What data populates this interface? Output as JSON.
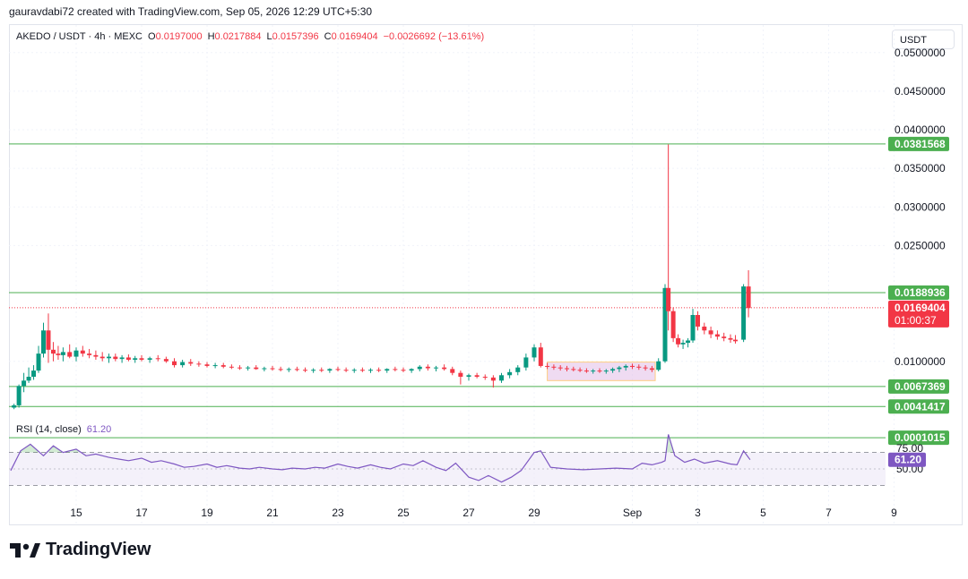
{
  "credit": "gauravdabi72 created with TradingView.com, Sep 05, 2026 12:29 UTC+5:30",
  "legend": {
    "symbol": "AKEDO / USDT · 4h · MEXC",
    "o_label": "O",
    "o": "0.0197000",
    "h_label": "H",
    "h": "0.0217884",
    "l_label": "L",
    "l": "0.0157396",
    "c_label": "C",
    "c": "0.0169404",
    "change": "−0.0026692 (−13.61%)"
  },
  "currency": "USDT",
  "brand": "TradingView",
  "colors": {
    "up": "#089981",
    "down": "#f23645",
    "level": "#4caf50",
    "rsi": "#7e57c2",
    "rsi_band": "#ede7f6",
    "box": "#e1bee7"
  },
  "chart_data": [
    {
      "type": "candlestick",
      "symbol": "AKEDO / USDT",
      "interval": "4h",
      "exchange": "MEXC",
      "ylim": [
        0,
        0.053
      ],
      "y_ticks": [
        "0.0500000",
        "0.0450000",
        "0.0400000",
        "0.0350000",
        "0.0300000",
        "0.0250000",
        "0.0100000"
      ],
      "x_ticks": [
        "15",
        "17",
        "19",
        "21",
        "23",
        "25",
        "27",
        "29",
        "Sep",
        "3",
        "5",
        "7",
        "9"
      ],
      "x_tick_days": [
        15,
        17,
        19,
        21,
        23,
        25,
        27,
        29,
        32,
        34,
        36,
        38,
        40
      ],
      "horizontal_levels": [
        "0.0381568",
        "0.0188936",
        "0.0067369",
        "0.0041417",
        "0.0001015"
      ],
      "last_price": "0.0169404",
      "countdown": "01:00:37",
      "candles": [
        [
          13.1,
          0.004,
          0.0045,
          0.0038,
          0.0043
        ],
        [
          13.25,
          0.0043,
          0.007,
          0.004,
          0.0068
        ],
        [
          13.4,
          0.0068,
          0.0085,
          0.006,
          0.0075
        ],
        [
          13.55,
          0.0075,
          0.0092,
          0.0072,
          0.008
        ],
        [
          13.7,
          0.008,
          0.0095,
          0.0076,
          0.0088
        ],
        [
          13.85,
          0.0088,
          0.012,
          0.0085,
          0.011
        ],
        [
          14.0,
          0.011,
          0.015,
          0.0105,
          0.014
        ],
        [
          14.15,
          0.014,
          0.0162,
          0.0098,
          0.0115
        ],
        [
          14.3,
          0.0115,
          0.0125,
          0.01,
          0.011
        ],
        [
          14.45,
          0.011,
          0.012,
          0.0102,
          0.0108
        ],
        [
          14.6,
          0.0108,
          0.0118,
          0.01,
          0.0112
        ],
        [
          14.8,
          0.0112,
          0.0122,
          0.0104,
          0.0106
        ],
        [
          15.0,
          0.0106,
          0.0118,
          0.01,
          0.0114
        ],
        [
          15.2,
          0.0114,
          0.012,
          0.0106,
          0.011
        ],
        [
          15.4,
          0.011,
          0.0116,
          0.0104,
          0.0108
        ],
        [
          15.6,
          0.0108,
          0.0114,
          0.0102,
          0.0106
        ],
        [
          15.8,
          0.0106,
          0.0112,
          0.01,
          0.0104
        ],
        [
          16.0,
          0.0104,
          0.011,
          0.0098,
          0.0106
        ],
        [
          16.2,
          0.0106,
          0.011,
          0.01,
          0.0103
        ],
        [
          16.4,
          0.0103,
          0.0108,
          0.0098,
          0.0105
        ],
        [
          16.6,
          0.0105,
          0.0109,
          0.01,
          0.0102
        ],
        [
          16.8,
          0.0102,
          0.0107,
          0.0098,
          0.0104
        ],
        [
          17.0,
          0.0104,
          0.0108,
          0.01,
          0.0102
        ],
        [
          17.25,
          0.0102,
          0.0106,
          0.0098,
          0.0104
        ],
        [
          17.5,
          0.0104,
          0.0108,
          0.01,
          0.0103
        ],
        [
          17.75,
          0.0103,
          0.0106,
          0.0098,
          0.01
        ],
        [
          18.0,
          0.01,
          0.0104,
          0.0092,
          0.0095
        ],
        [
          18.25,
          0.0095,
          0.0102,
          0.0092,
          0.0099
        ],
        [
          18.5,
          0.0099,
          0.0103,
          0.0094,
          0.0097
        ],
        [
          18.75,
          0.0097,
          0.01,
          0.0093,
          0.0096
        ],
        [
          19.0,
          0.0096,
          0.0099,
          0.0092,
          0.0094
        ],
        [
          19.25,
          0.0094,
          0.0098,
          0.0091,
          0.0095
        ],
        [
          19.5,
          0.0095,
          0.0098,
          0.0091,
          0.0093
        ],
        [
          19.75,
          0.0093,
          0.0096,
          0.009,
          0.0092
        ],
        [
          20.0,
          0.0092,
          0.0095,
          0.0089,
          0.0091
        ],
        [
          20.25,
          0.0091,
          0.0094,
          0.0088,
          0.0092
        ],
        [
          20.5,
          0.0092,
          0.0095,
          0.0089,
          0.009
        ],
        [
          20.75,
          0.009,
          0.0093,
          0.0087,
          0.0091
        ],
        [
          21.0,
          0.0091,
          0.0094,
          0.0088,
          0.009
        ],
        [
          21.25,
          0.009,
          0.0093,
          0.0087,
          0.0089
        ],
        [
          21.5,
          0.0089,
          0.0092,
          0.0086,
          0.009
        ],
        [
          21.75,
          0.009,
          0.0093,
          0.0087,
          0.0089
        ],
        [
          22.0,
          0.0089,
          0.0092,
          0.0086,
          0.0088
        ],
        [
          22.25,
          0.0088,
          0.0091,
          0.0085,
          0.0089
        ],
        [
          22.5,
          0.0089,
          0.0092,
          0.0086,
          0.0088
        ],
        [
          22.75,
          0.0088,
          0.0091,
          0.0085,
          0.009
        ],
        [
          23.0,
          0.009,
          0.0093,
          0.0087,
          0.0089
        ],
        [
          23.25,
          0.0089,
          0.0092,
          0.0086,
          0.0088
        ],
        [
          23.5,
          0.0088,
          0.0091,
          0.0085,
          0.0089
        ],
        [
          23.75,
          0.0089,
          0.0092,
          0.0086,
          0.0088
        ],
        [
          24.0,
          0.0088,
          0.0091,
          0.0085,
          0.0089
        ],
        [
          24.25,
          0.0089,
          0.0092,
          0.0086,
          0.0088
        ],
        [
          24.5,
          0.0088,
          0.0091,
          0.0085,
          0.009
        ],
        [
          24.75,
          0.009,
          0.0093,
          0.0087,
          0.0089
        ],
        [
          25.0,
          0.0089,
          0.0092,
          0.0086,
          0.0088
        ],
        [
          25.25,
          0.0088,
          0.0091,
          0.0085,
          0.009
        ],
        [
          25.5,
          0.009,
          0.0095,
          0.0087,
          0.0093
        ],
        [
          25.75,
          0.0093,
          0.0096,
          0.0088,
          0.0091
        ],
        [
          26.0,
          0.0091,
          0.0094,
          0.0087,
          0.0092
        ],
        [
          26.25,
          0.0092,
          0.0096,
          0.0088,
          0.009
        ],
        [
          26.5,
          0.009,
          0.0093,
          0.0082,
          0.0085
        ],
        [
          26.75,
          0.0085,
          0.0088,
          0.007,
          0.008
        ],
        [
          27.0,
          0.008,
          0.0084,
          0.0075,
          0.0082
        ],
        [
          27.25,
          0.0082,
          0.0085,
          0.0078,
          0.008
        ],
        [
          27.5,
          0.008,
          0.0083,
          0.0076,
          0.0079
        ],
        [
          27.75,
          0.0079,
          0.0082,
          0.0066,
          0.0075
        ],
        [
          28.0,
          0.0075,
          0.0085,
          0.0072,
          0.0082
        ],
        [
          28.25,
          0.0082,
          0.009,
          0.0078,
          0.0086
        ],
        [
          28.5,
          0.0086,
          0.0095,
          0.0082,
          0.0092
        ],
        [
          28.75,
          0.0092,
          0.011,
          0.0088,
          0.0105
        ],
        [
          29.0,
          0.0105,
          0.0122,
          0.01,
          0.0118
        ],
        [
          29.2,
          0.0118,
          0.0124,
          0.0092,
          0.0094
        ],
        [
          29.4,
          0.0094,
          0.0098,
          0.009,
          0.0093
        ],
        [
          29.6,
          0.0093,
          0.0096,
          0.0089,
          0.0092
        ],
        [
          29.8,
          0.0092,
          0.0095,
          0.0088,
          0.0091
        ],
        [
          30.0,
          0.0091,
          0.0094,
          0.0087,
          0.009
        ],
        [
          30.2,
          0.009,
          0.0093,
          0.0087,
          0.0089
        ],
        [
          30.4,
          0.0089,
          0.0092,
          0.0086,
          0.0088
        ],
        [
          30.6,
          0.0088,
          0.0091,
          0.0085,
          0.0087
        ],
        [
          30.8,
          0.0087,
          0.009,
          0.0084,
          0.0088
        ],
        [
          31.0,
          0.0088,
          0.0091,
          0.0085,
          0.0087
        ],
        [
          31.2,
          0.0087,
          0.009,
          0.0084,
          0.0088
        ],
        [
          31.4,
          0.0088,
          0.0092,
          0.0085,
          0.009
        ],
        [
          31.6,
          0.009,
          0.0094,
          0.0086,
          0.0092
        ],
        [
          31.8,
          0.0092,
          0.0096,
          0.0088,
          0.0094
        ],
        [
          32.0,
          0.0094,
          0.0097,
          0.009,
          0.0093
        ],
        [
          32.2,
          0.0093,
          0.0096,
          0.0089,
          0.0092
        ],
        [
          32.4,
          0.0092,
          0.0095,
          0.0088,
          0.0091
        ],
        [
          32.6,
          0.0091,
          0.0094,
          0.0086,
          0.0089
        ],
        [
          32.8,
          0.0089,
          0.0104,
          0.0087,
          0.01
        ],
        [
          33.0,
          0.01,
          0.02,
          0.0098,
          0.0195
        ],
        [
          33.1,
          0.0195,
          0.0381,
          0.014,
          0.0165
        ],
        [
          33.25,
          0.0165,
          0.017,
          0.0125,
          0.013
        ],
        [
          33.4,
          0.013,
          0.0135,
          0.0118,
          0.0122
        ],
        [
          33.55,
          0.0122,
          0.0128,
          0.0116,
          0.0124
        ],
        [
          33.7,
          0.0124,
          0.013,
          0.0118,
          0.0127
        ],
        [
          33.85,
          0.0127,
          0.0168,
          0.0124,
          0.016
        ],
        [
          34.0,
          0.016,
          0.0165,
          0.014,
          0.0145
        ],
        [
          34.2,
          0.0145,
          0.015,
          0.0135,
          0.014
        ],
        [
          34.4,
          0.014,
          0.0145,
          0.013,
          0.0135
        ],
        [
          34.6,
          0.0135,
          0.014,
          0.0128,
          0.0132
        ],
        [
          34.8,
          0.0132,
          0.0137,
          0.0126,
          0.013
        ],
        [
          35.0,
          0.013,
          0.0135,
          0.0124,
          0.0128
        ],
        [
          35.15,
          0.0128,
          0.0134,
          0.0123,
          0.0126
        ],
        [
          35.4,
          0.0128,
          0.02,
          0.0125,
          0.0197
        ],
        [
          35.55,
          0.0197,
          0.0218,
          0.0157,
          0.0169
        ]
      ]
    },
    {
      "type": "line",
      "indicator": "RSI",
      "label": "RSI (14, close)",
      "value": "61.20",
      "y_ticks": [
        "75.00",
        "50.00"
      ],
      "bands": [
        70,
        30
      ],
      "midline": 50,
      "ylim": [
        18,
        100
      ],
      "x": [
        13.0,
        13.3,
        13.6,
        14.0,
        14.3,
        14.6,
        15.0,
        15.3,
        15.6,
        16.0,
        16.3,
        16.6,
        17.0,
        17.3,
        17.6,
        18.0,
        18.3,
        18.6,
        19.0,
        19.3,
        19.6,
        20.0,
        20.3,
        20.6,
        21.0,
        21.3,
        21.6,
        22.0,
        22.3,
        22.6,
        23.0,
        23.3,
        23.6,
        24.0,
        24.3,
        24.6,
        25.0,
        25.3,
        25.6,
        26.0,
        26.3,
        26.6,
        27.0,
        27.3,
        27.6,
        28.0,
        28.3,
        28.6,
        29.0,
        29.2,
        29.5,
        30.0,
        30.5,
        31.0,
        31.5,
        32.0,
        32.3,
        32.6,
        32.9,
        33.0,
        33.1,
        33.3,
        33.6,
        33.9,
        34.2,
        34.6,
        35.0,
        35.2,
        35.4,
        35.6
      ],
      "y": [
        48,
        72,
        80,
        66,
        78,
        70,
        74,
        66,
        68,
        64,
        62,
        60,
        63,
        58,
        60,
        56,
        52,
        53,
        56,
        52,
        54,
        51,
        50,
        52,
        50,
        49,
        51,
        50,
        52,
        51,
        56,
        53,
        51,
        55,
        52,
        50,
        56,
        54,
        60,
        52,
        48,
        57,
        40,
        36,
        42,
        34,
        40,
        48,
        70,
        72,
        52,
        50,
        49,
        50,
        51,
        50,
        57,
        55,
        58,
        60,
        92,
        66,
        58,
        62,
        57,
        60,
        56,
        55,
        72,
        61.2
      ]
    }
  ]
}
